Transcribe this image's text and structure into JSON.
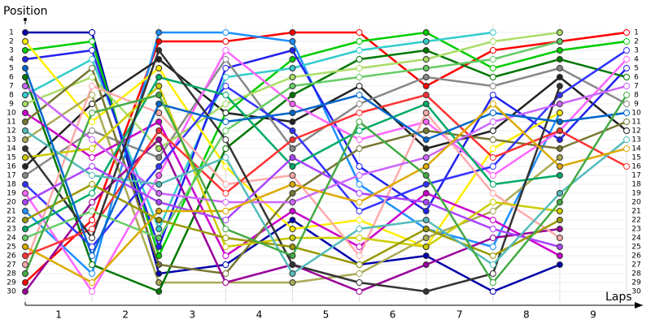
{
  "chart_data": {
    "type": "line",
    "y_label": "Position",
    "x_label": "Laps",
    "lap_labels": [
      "1",
      "2",
      "3",
      "4",
      "5",
      "6",
      "7",
      "8",
      "9"
    ],
    "x": [
      0,
      1,
      2,
      3,
      4,
      5,
      6,
      7,
      8,
      9
    ],
    "xlim": [
      0,
      9
    ],
    "ylim": [
      1,
      30
    ],
    "yticks": [
      1,
      2,
      3,
      4,
      5,
      6,
      7,
      8,
      9,
      10,
      11,
      12,
      13,
      14,
      15,
      16,
      17,
      18,
      19,
      20,
      21,
      22,
      23,
      24,
      25,
      26,
      27,
      28,
      29,
      30
    ],
    "series": [
      {
        "color": "#0000aa",
        "values": [
          1,
          1,
          28,
          27,
          22,
          27,
          26,
          30,
          27,
          null
        ]
      },
      {
        "color": "#ff0000",
        "values": [
          29,
          22,
          2,
          2,
          1,
          1,
          7,
          3,
          2,
          1
        ]
      },
      {
        "color": "#00cc00",
        "values": [
          3,
          2,
          26,
          10,
          4,
          2,
          1,
          5,
          3,
          2
        ]
      },
      {
        "color": "#1e90ff",
        "values": [
          21,
          28,
          1,
          1,
          2,
          18,
          23,
          25,
          10,
          null
        ]
      },
      {
        "color": "#33cccc",
        "values": [
          8,
          4,
          23,
          6,
          5,
          3,
          2,
          1,
          null,
          null
        ]
      },
      {
        "color": "#222222",
        "values": [
          16,
          9,
          4,
          10,
          11,
          7,
          14,
          12,
          6,
          12
        ]
      },
      {
        "color": "#2222ee",
        "values": [
          4,
          3,
          25,
          5,
          3,
          16,
          21,
          8,
          13,
          5
        ]
      },
      {
        "color": "#ffee00",
        "values": [
          2,
          11,
          5,
          16,
          23,
          22,
          25,
          14,
          10,
          null
        ]
      },
      {
        "color": "#888888",
        "values": [
          17,
          12,
          15,
          4,
          14,
          9,
          6,
          7,
          5,
          9
        ]
      },
      {
        "color": "#aaaa55",
        "values": [
          13,
          8,
          29,
          29,
          29,
          28,
          24,
          21,
          15,
          null
        ]
      },
      {
        "color": "#007700",
        "values": [
          6,
          27,
          30,
          14,
          8,
          4,
          3,
          6,
          4,
          6
        ]
      },
      {
        "color": "#ff66ff",
        "values": [
          19,
          30,
          17,
          3,
          9,
          13,
          11,
          17,
          12,
          4
        ]
      },
      {
        "color": "#cc00cc",
        "values": [
          10,
          15,
          11,
          26,
          21,
          25,
          19,
          22,
          26,
          null
        ]
      },
      {
        "color": "#aadd66",
        "values": [
          9,
          6,
          14,
          9,
          6,
          5,
          4,
          2,
          1,
          null
        ]
      },
      {
        "color": "#777733",
        "values": [
          11,
          5,
          27,
          28,
          19,
          14,
          12,
          13,
          14,
          11
        ]
      },
      {
        "color": "#990099",
        "values": [
          30,
          20,
          13,
          29,
          27,
          30,
          27,
          24,
          23,
          null
        ]
      },
      {
        "color": "#3333ff",
        "values": [
          18,
          25,
          16,
          7,
          12,
          21,
          18,
          16,
          8,
          3
        ]
      },
      {
        "color": "#ffaaaa",
        "values": [
          27,
          7,
          10,
          18,
          17,
          26,
          10,
          19,
          24,
          null
        ]
      },
      {
        "color": "#00aa66",
        "values": [
          23,
          19,
          6,
          8,
          16,
          12,
          9,
          18,
          17,
          null
        ]
      },
      {
        "color": "#cccc00",
        "values": [
          15,
          14,
          7,
          25,
          24,
          24,
          25,
          20,
          21,
          null
        ]
      },
      {
        "color": "#ff3333",
        "values": [
          26,
          23,
          12,
          19,
          13,
          10,
          8,
          15,
          12,
          16
        ]
      },
      {
        "color": "#66cc66",
        "values": [
          24,
          21,
          24,
          12,
          7,
          6,
          5,
          4,
          2,
          null
        ]
      },
      {
        "color": "#333333",
        "values": [
          14,
          24,
          3,
          13,
          27,
          29,
          30,
          28,
          7,
          null
        ]
      },
      {
        "color": "#aa44ff",
        "values": [
          20,
          16,
          20,
          22,
          15,
          19,
          20,
          23,
          25,
          null
        ]
      },
      {
        "color": "#999900",
        "values": [
          22,
          18,
          22,
          24,
          25,
          27,
          23,
          26,
          22,
          null
        ]
      },
      {
        "color": "#cc66ff",
        "values": [
          7,
          13,
          19,
          20,
          20,
          17,
          15,
          11,
          9,
          7
        ]
      },
      {
        "color": "#55bbbb",
        "values": [
          12,
          17,
          18,
          15,
          28,
          23,
          22,
          27,
          19,
          13
        ]
      },
      {
        "color": "#0066cc",
        "values": [
          5,
          26,
          9,
          11,
          10,
          8,
          13,
          10,
          11,
          10
        ]
      },
      {
        "color": "#ddaa00",
        "values": [
          25,
          29,
          21,
          21,
          18,
          20,
          16,
          9,
          16,
          14
        ]
      },
      {
        "color": "#44aa44",
        "values": [
          28,
          10,
          8,
          23,
          26,
          11,
          17,
          29,
          20,
          8
        ]
      }
    ]
  }
}
